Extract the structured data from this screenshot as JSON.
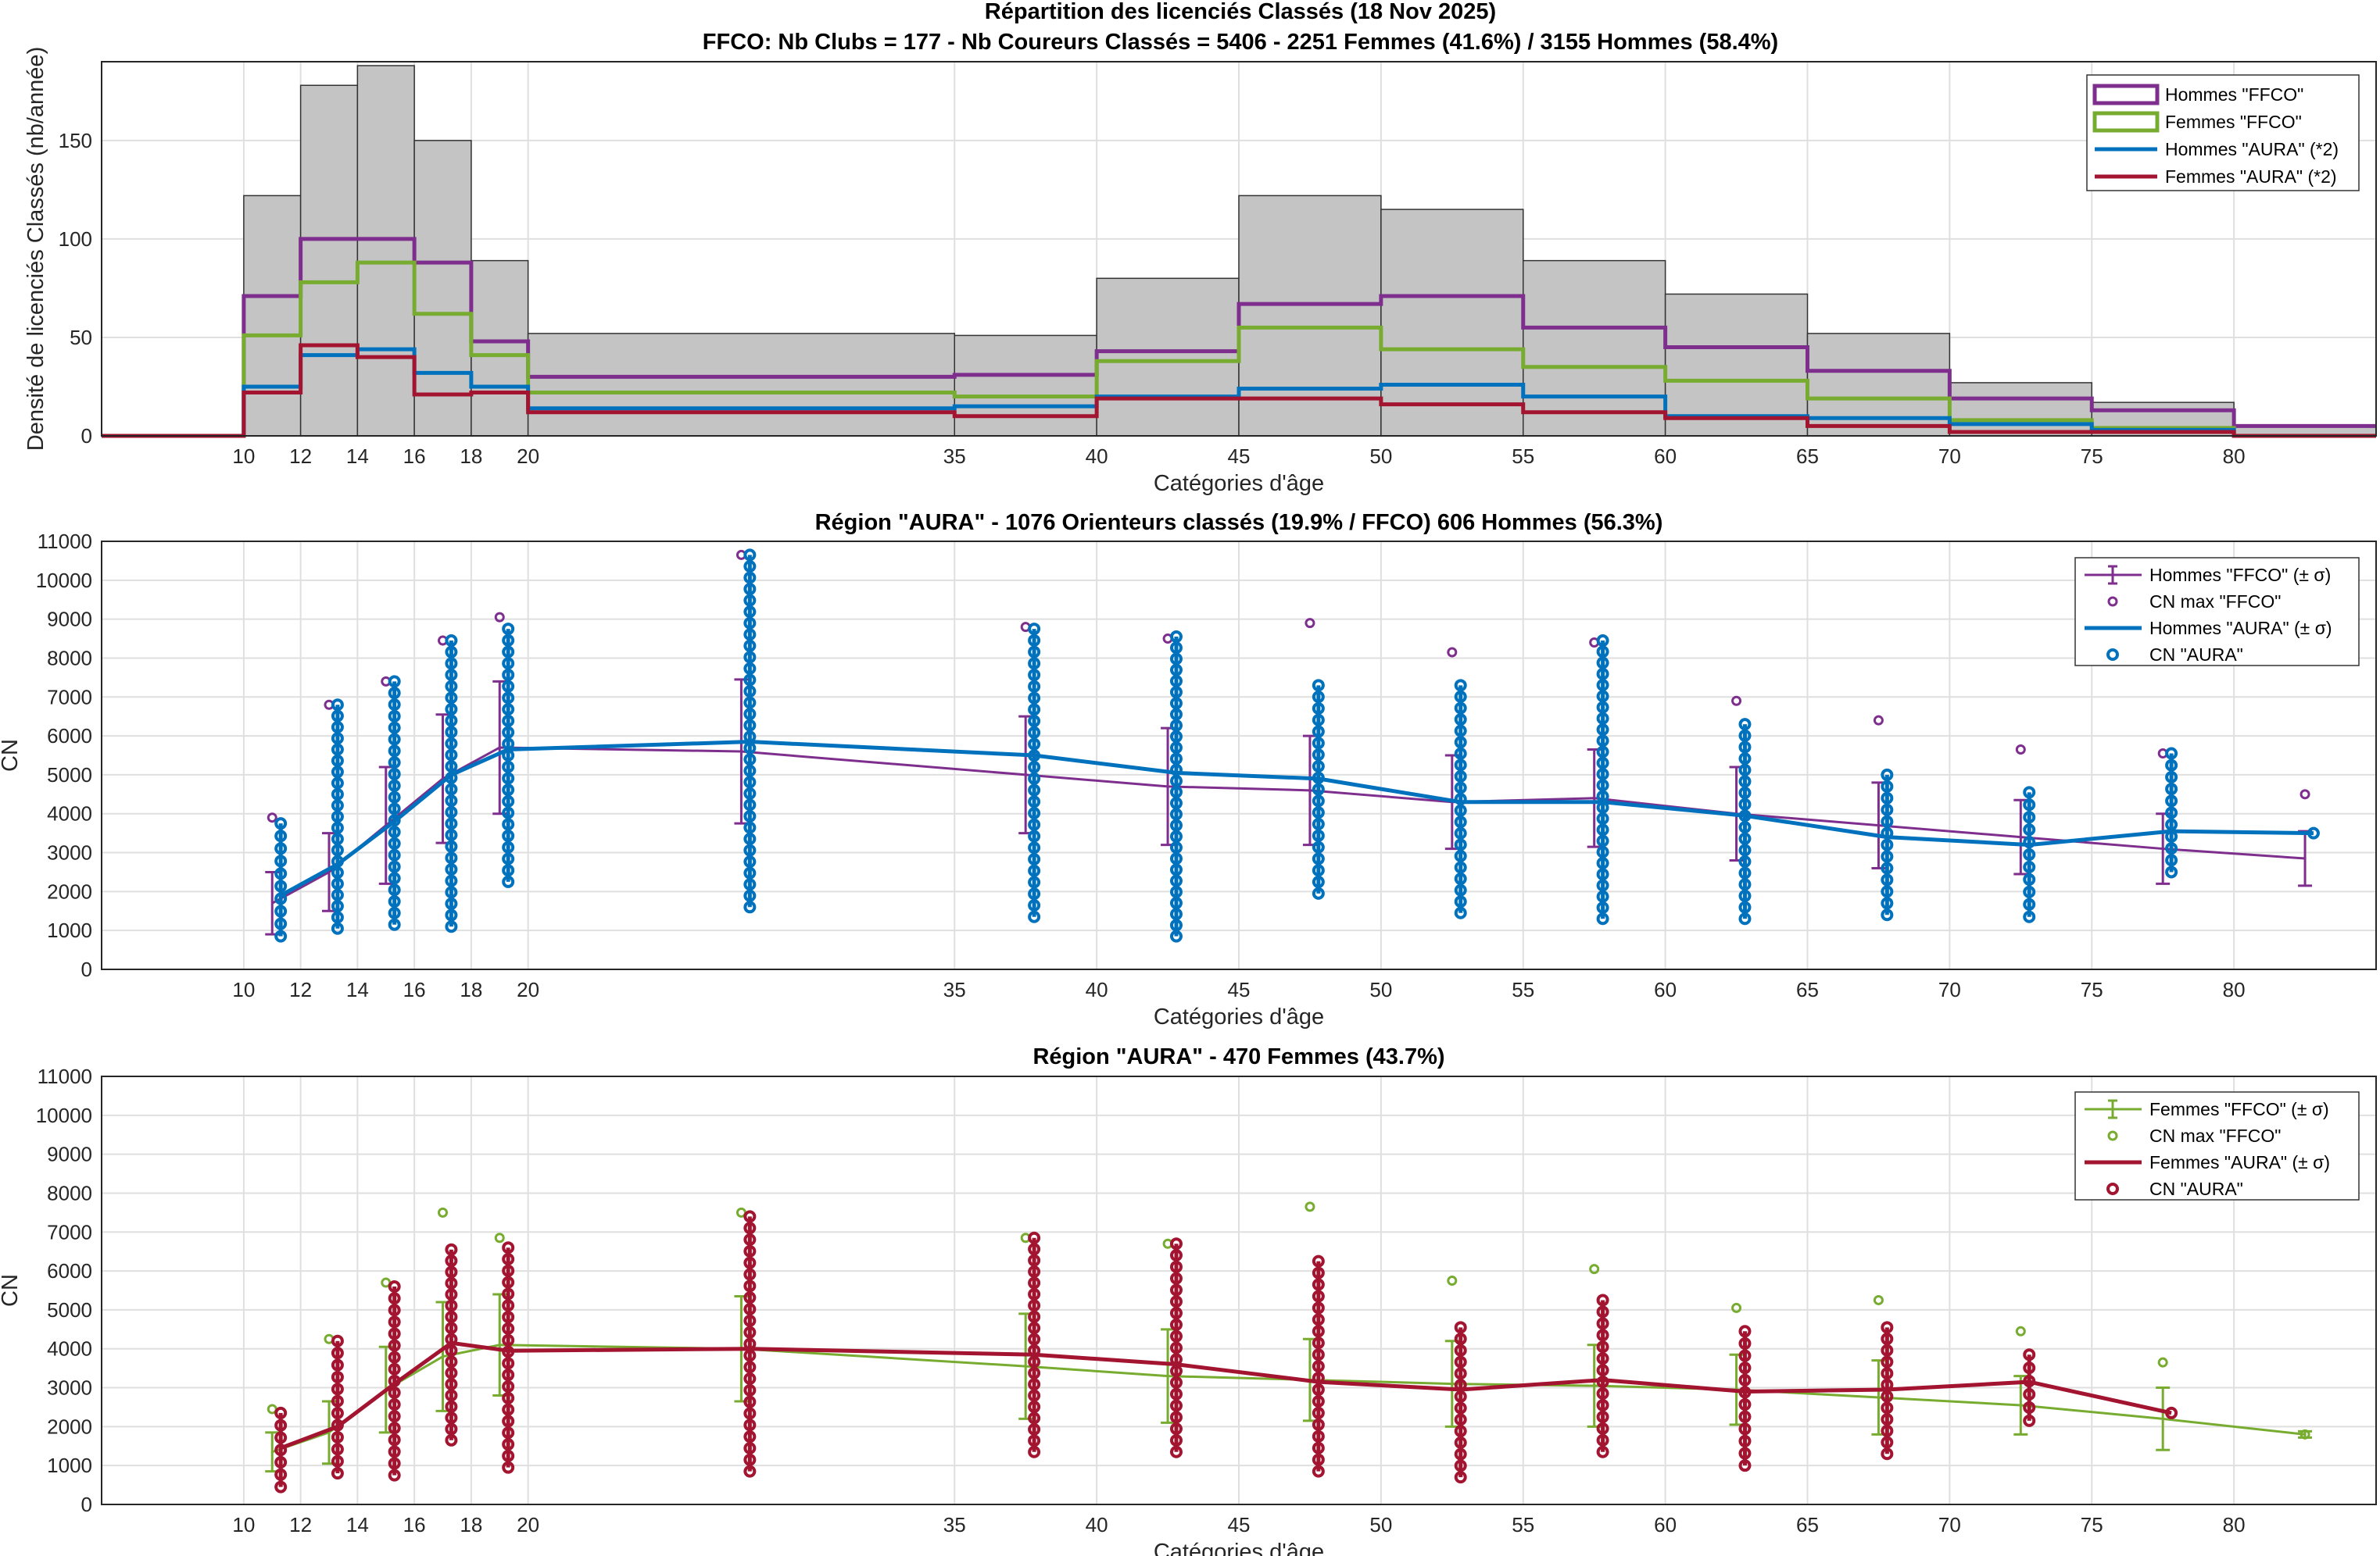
{
  "figure": {
    "title_line1": "Répartition des licenciés Classés (18 Nov 2025)",
    "title_line2": "FFCO: Nb Clubs = 177   -   Nb Coureurs Classés = 5406   -   2251 Femmes (41.6%) / 3155 Hommes (58.4%)"
  },
  "chart_data": [
    {
      "id": "histogram",
      "type": "bar",
      "title": "",
      "xlabel": "Catégories d'âge",
      "ylabel": "Densité de licenciés Classés (nb/année)",
      "xlim": [
        5,
        85
      ],
      "ylim": [
        0,
        190
      ],
      "xticks": [
        10,
        12,
        14,
        16,
        18,
        20,
        35,
        40,
        45,
        50,
        55,
        60,
        65,
        70,
        75,
        80
      ],
      "yticks": [
        0,
        50,
        100,
        150
      ],
      "bins": [
        [
          10,
          12
        ],
        [
          12,
          14
        ],
        [
          14,
          16
        ],
        [
          16,
          18
        ],
        [
          18,
          20
        ],
        [
          20,
          35
        ],
        [
          35,
          40
        ],
        [
          40,
          45
        ],
        [
          45,
          50
        ],
        [
          50,
          55
        ],
        [
          55,
          60
        ],
        [
          60,
          65
        ],
        [
          65,
          70
        ],
        [
          70,
          75
        ],
        [
          75,
          80
        ],
        [
          80,
          85
        ]
      ],
      "total_density": [
        122,
        178,
        188,
        150,
        89,
        52,
        51,
        80,
        122,
        115,
        89,
        72,
        52,
        27,
        17,
        5
      ],
      "series": [
        {
          "name": "Hommes \"FFCO\"",
          "color": "#7E2F8E",
          "values": [
            71,
            100,
            100,
            88,
            48,
            30,
            31,
            43,
            67,
            71,
            55,
            45,
            33,
            19,
            13,
            5
          ]
        },
        {
          "name": "Femmes \"FFCO\"",
          "color": "#77AC30",
          "values": [
            51,
            78,
            88,
            62,
            41,
            22,
            20,
            38,
            55,
            44,
            35,
            28,
            19,
            8,
            4,
            0
          ]
        },
        {
          "name": "Hommes \"AURA\" (*2)",
          "color": "#0072BD",
          "values": [
            25,
            41,
            44,
            32,
            25,
            14,
            15,
            20,
            24,
            26,
            20,
            10,
            9,
            6,
            3,
            0
          ]
        },
        {
          "name": "Femmes \"AURA\" (*2)",
          "color": "#A2142F",
          "values": [
            22,
            46,
            40,
            21,
            22,
            12,
            10,
            19,
            19,
            16,
            12,
            9,
            5,
            2,
            2,
            0
          ]
        }
      ],
      "legend": [
        "Hommes \"FFCO\"",
        "Femmes \"FFCO\"",
        "Hommes \"AURA\" (*2)",
        "Femmes \"AURA\" (*2)"
      ],
      "legend_position": "top-right",
      "grid": true
    },
    {
      "id": "hommes",
      "type": "line",
      "title": "Région \"AURA\"  -  1076 Orienteurs classés (19.9% / FFCO)  606 Hommes (56.3%)",
      "xlabel": "Catégories d'âge",
      "ylabel": "CN",
      "xlim": [
        5,
        85
      ],
      "ylim": [
        0,
        11000
      ],
      "xticks": [
        10,
        12,
        14,
        16,
        18,
        20,
        35,
        40,
        45,
        50,
        55,
        60,
        65,
        70,
        75,
        80
      ],
      "yticks": [
        0,
        1000,
        2000,
        3000,
        4000,
        5000,
        6000,
        7000,
        8000,
        9000,
        10000,
        11000
      ],
      "ffco": {
        "name": "Hommes \"FFCO\" (± σ)",
        "color": "#7E2F8E",
        "x": [
          11,
          13,
          15,
          17,
          19,
          27.5,
          37.5,
          42.5,
          47.5,
          52.5,
          57.5,
          62.5,
          67.5,
          72.5,
          77.5,
          82.5
        ],
        "mean": [
          1700,
          2500,
          3700,
          4900,
          5700,
          5600,
          5000,
          4700,
          4600,
          4300,
          4400,
          4000,
          3700,
          3400,
          3100,
          2850
        ],
        "sigma": [
          800,
          1000,
          1500,
          1650,
          1700,
          1850,
          1500,
          1500,
          1400,
          1200,
          1250,
          1200,
          1100,
          950,
          900,
          700
        ],
        "cn_max": [
          3900,
          6800,
          7400,
          8450,
          9050,
          10650,
          8800,
          8500,
          8900,
          8150,
          8400,
          6900,
          6400,
          5650,
          5550,
          4500
        ]
      },
      "aura": {
        "name": "Hommes \"AURA\" (± σ)",
        "color": "#0072BD",
        "x": [
          11.3,
          13.3,
          15.3,
          17.3,
          19.3,
          27.8,
          37.8,
          42.8,
          47.8,
          52.8,
          57.8,
          62.8,
          67.8,
          72.8,
          77.8,
          82.8
        ],
        "mean": [
          1900,
          2700,
          3800,
          5000,
          5650,
          5850,
          5500,
          5050,
          4900,
          4300,
          4300,
          3950,
          3400,
          3200,
          3550,
          3500
        ],
        "cn_min": [
          850,
          1050,
          1150,
          1100,
          2250,
          1600,
          1350,
          850,
          1950,
          1450,
          1300,
          1300,
          1400,
          1350,
          2500,
          3500
        ],
        "cn_max": [
          3750,
          6800,
          7400,
          8450,
          8750,
          10650,
          8750,
          8550,
          7300,
          7300,
          8450,
          6300,
          5000,
          4550,
          5550,
          3500
        ]
      },
      "legend": [
        "Hommes \"FFCO\" (± σ)",
        "CN max \"FFCO\"",
        "Hommes \"AURA\" (± σ)",
        "CN \"AURA\""
      ],
      "legend_position": "top-right",
      "grid": true
    },
    {
      "id": "femmes",
      "type": "line",
      "title": "Région \"AURA\"  -  470 Femmes (43.7%)",
      "xlabel": "Catégories d'âge",
      "ylabel": "CN",
      "xlim": [
        5,
        85
      ],
      "ylim": [
        0,
        11000
      ],
      "xticks": [
        10,
        12,
        14,
        16,
        18,
        20,
        35,
        40,
        45,
        50,
        55,
        60,
        65,
        70,
        75,
        80
      ],
      "yticks": [
        0,
        1000,
        2000,
        3000,
        4000,
        5000,
        6000,
        7000,
        8000,
        9000,
        10000,
        11000
      ],
      "ffco": {
        "name": "Femmes \"FFCO\" (± σ)",
        "color": "#77AC30",
        "x": [
          11,
          13,
          15,
          17,
          19,
          27.5,
          37.5,
          42.5,
          47.5,
          52.5,
          57.5,
          62.5,
          67.5,
          72.5,
          77.5,
          82.5
        ],
        "mean": [
          1350,
          1850,
          2950,
          3800,
          4100,
          4000,
          3550,
          3300,
          3200,
          3100,
          3050,
          2950,
          2750,
          2550,
          2200,
          1800
        ],
        "sigma": [
          500,
          800,
          1100,
          1400,
          1300,
          1350,
          1350,
          1200,
          1050,
          1100,
          1050,
          900,
          950,
          750,
          800,
          80
        ],
        "cn_max": [
          2450,
          4250,
          5700,
          7500,
          6850,
          7500,
          6850,
          6700,
          7650,
          5750,
          6050,
          5050,
          5250,
          4450,
          3650,
          1800
        ]
      },
      "aura": {
        "name": "Femmes \"AURA\" (± σ)",
        "color": "#A2142F",
        "x": [
          11.3,
          13.3,
          15.3,
          17.3,
          19.3,
          27.8,
          37.8,
          42.8,
          47.8,
          52.8,
          57.8,
          62.8,
          67.8,
          72.8,
          77.8
        ],
        "mean": [
          1450,
          2000,
          3100,
          4150,
          3950,
          4000,
          3850,
          3600,
          3150,
          2950,
          3200,
          2900,
          2950,
          3150,
          2350
        ],
        "cn_min": [
          450,
          800,
          750,
          1650,
          950,
          850,
          1350,
          1350,
          850,
          700,
          1350,
          1000,
          1300,
          2150,
          2350
        ],
        "cn_max": [
          2350,
          4200,
          5600,
          6550,
          6600,
          7400,
          6850,
          6700,
          6250,
          4550,
          5250,
          4450,
          4550,
          3850,
          2350
        ]
      },
      "legend": [
        "Femmes \"FFCO\" (± σ)",
        "CN max \"FFCO\"",
        "Femmes \"AURA\" (± σ)",
        "CN \"AURA\""
      ],
      "legend_position": "top-right",
      "grid": true
    }
  ]
}
